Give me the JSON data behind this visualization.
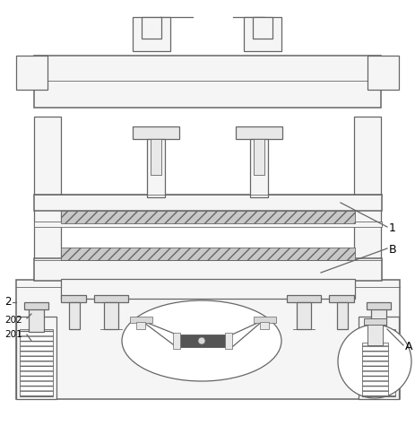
{
  "fig_width": 4.63,
  "fig_height": 4.75,
  "dpi": 100,
  "bg_color": "#ffffff",
  "line_color": "#666666",
  "fc_light": "#f5f5f5",
  "fc_mid": "#e8e8e8",
  "fc_dark": "#d8d8d8",
  "fc_hatch": "#cccccc",
  "label_1": "1",
  "label_B": "B",
  "label_A": "A",
  "label_2": "2",
  "label_201": "201",
  "label_202": "202"
}
